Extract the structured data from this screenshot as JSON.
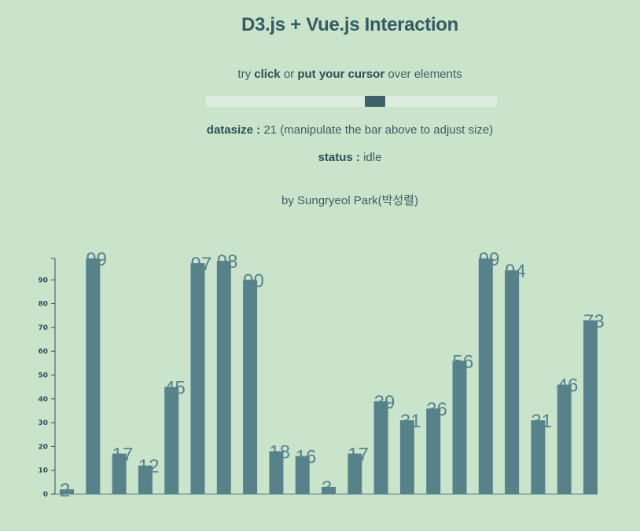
{
  "header": {
    "title": "D3.js + Vue.js Interaction",
    "hint_prefix": "try",
    "hint_click": "click",
    "hint_or": "or",
    "hint_cursor": "put your cursor",
    "hint_suffix": "over elements"
  },
  "slider": {
    "value": 21,
    "min": 1,
    "max": 35
  },
  "info": {
    "datasize_label": "datasize :",
    "datasize_value": "21",
    "datasize_note": "(manipulate the bar above to adjust size)",
    "status_label": "status :",
    "status_value": "idle"
  },
  "credit": "by Sungryeol Park(박성렬)",
  "colors": {
    "background": "#c9e4cb",
    "bar": "#58828a",
    "slider_track": "#dcecde",
    "slider_thumb": "#3f6268"
  },
  "chart_data": {
    "type": "bar",
    "values": [
      2,
      99,
      17,
      12,
      45,
      97,
      98,
      90,
      18,
      16,
      3,
      17,
      39,
      31,
      36,
      56,
      99,
      94,
      31,
      46,
      73
    ],
    "yticks": [
      0,
      10,
      20,
      30,
      40,
      50,
      60,
      70,
      80,
      90
    ],
    "ylim": [
      0,
      99
    ],
    "title": "",
    "xlabel": "",
    "ylabel": "",
    "grid": false,
    "data_labels": true
  }
}
